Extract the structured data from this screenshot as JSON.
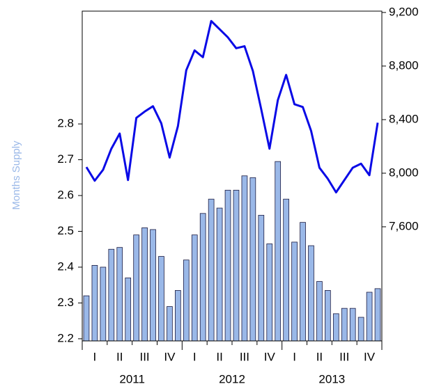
{
  "chart_data": {
    "type": "bar-line",
    "y_label": "Months Supply",
    "ylim": [
      2.194,
      3.115
    ],
    "yticks": [
      2.2,
      2.3,
      2.4,
      2.5,
      2.6,
      2.7,
      2.8
    ],
    "y2lim": [
      6748,
      9210
    ],
    "y2ticks": [
      {
        "value": 7600,
        "label": "7,600"
      },
      {
        "value": 8000,
        "label": "8,000"
      },
      {
        "value": 8400,
        "label": "8,400"
      },
      {
        "value": 8800,
        "label": "8,800"
      },
      {
        "value": 9200,
        "label": "9,200"
      }
    ],
    "years": [
      "2011",
      "2012",
      "2013"
    ],
    "quarters": [
      "I",
      "II",
      "III",
      "IV",
      "I",
      "II",
      "III",
      "IV",
      "I",
      "II",
      "III",
      "IV"
    ],
    "series": [
      {
        "type": "bar",
        "color": "#9ab8e8",
        "values": [
          2.32,
          2.405,
          2.4,
          2.45,
          2.455,
          2.37,
          2.49,
          2.51,
          2.505,
          2.43,
          2.29,
          2.335,
          2.42,
          2.49,
          2.55,
          2.59,
          2.565,
          2.615,
          2.615,
          2.655,
          2.65,
          2.545,
          2.465,
          2.695,
          2.59,
          2.47,
          2.525,
          2.46,
          2.36,
          2.335,
          2.27,
          2.285,
          2.285,
          2.26,
          2.33,
          2.34
        ]
      },
      {
        "type": "line",
        "axis": "y2",
        "color": "#0a0ae6",
        "values": [
          8046,
          7944,
          8025,
          8183,
          8296,
          7949,
          8413,
          8460,
          8500,
          8372,
          8117,
          8352,
          8769,
          8917,
          8866,
          9136,
          9075,
          9014,
          8933,
          8948,
          8764,
          8479,
          8183,
          8545,
          8734,
          8515,
          8494,
          8316,
          8041,
          7959,
          7857,
          7949,
          8041,
          8071,
          7985,
          8377
        ]
      }
    ]
  }
}
